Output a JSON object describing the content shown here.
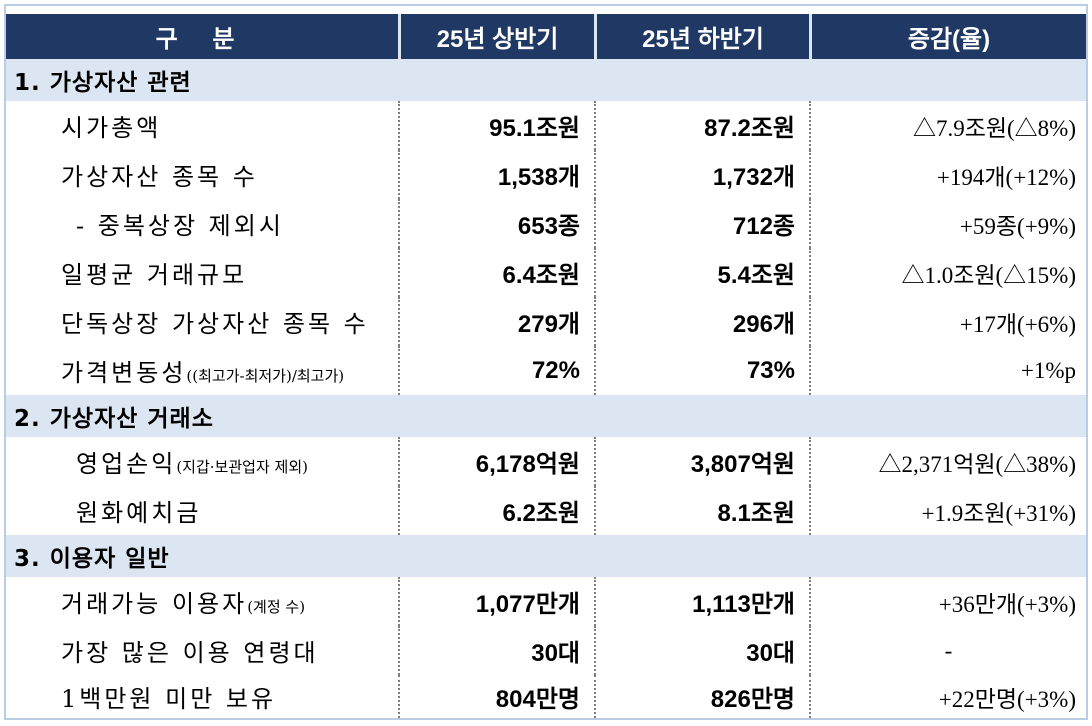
{
  "header": {
    "col1": "구  분",
    "col2": "25년 상반기",
    "col3": "25년 하반기",
    "col4": "증감(율)"
  },
  "sections": [
    {
      "title": "1. 가상자산 관련",
      "rows": [
        {
          "label": "시가총액",
          "note": "",
          "h1": "95.1조원",
          "h2": "87.2조원",
          "change": "△7.9조원(△8%)"
        },
        {
          "label": "가상자산 종목 수",
          "note": "",
          "h1": "1,538개",
          "h2": "1,732개",
          "change": "+194개(+12%)"
        },
        {
          "label": "- 중복상장 제외시",
          "note": "",
          "h1": "653종",
          "h2": "712종",
          "change": "+59종(+9%)"
        },
        {
          "label": "일평균 거래규모",
          "note": "",
          "h1": "6.4조원",
          "h2": "5.4조원",
          "change": "△1.0조원(△15%)"
        },
        {
          "label": "단독상장 가상자산 종목 수",
          "note": "",
          "h1": "279개",
          "h2": "296개",
          "change": "+17개(+6%)"
        },
        {
          "label": "가격변동성",
          "note": "((최고가-최저가)/최고가)",
          "h1": "72%",
          "h2": "73%",
          "change": "+1%p"
        }
      ]
    },
    {
      "title": "2. 가상자산 거래소",
      "rows": [
        {
          "label": "영업손익",
          "note": "(지갑·보관업자 제외)",
          "h1": "6,178억원",
          "h2": "3,807억원",
          "change": "△2,371억원(△38%)"
        },
        {
          "label": "원화예치금",
          "note": "",
          "h1": "6.2조원",
          "h2": "8.1조원",
          "change": "+1.9조원(+31%)"
        }
      ]
    },
    {
      "title": "3. 이용자 일반",
      "rows": [
        {
          "label": "거래가능 이용자",
          "note": "(계정 수)",
          "h1": "1,077만개",
          "h2": "1,113만개",
          "change": "+36만개(+3%)"
        },
        {
          "label": "가장 많은 이용 연령대",
          "note": "",
          "h1": "30대",
          "h2": "30대",
          "change": "-"
        },
        {
          "label": "1백만원 미만 보유",
          "note": "",
          "h1": "804만명",
          "h2": "826만명",
          "change": "+22만명(+3%)"
        }
      ]
    }
  ]
}
